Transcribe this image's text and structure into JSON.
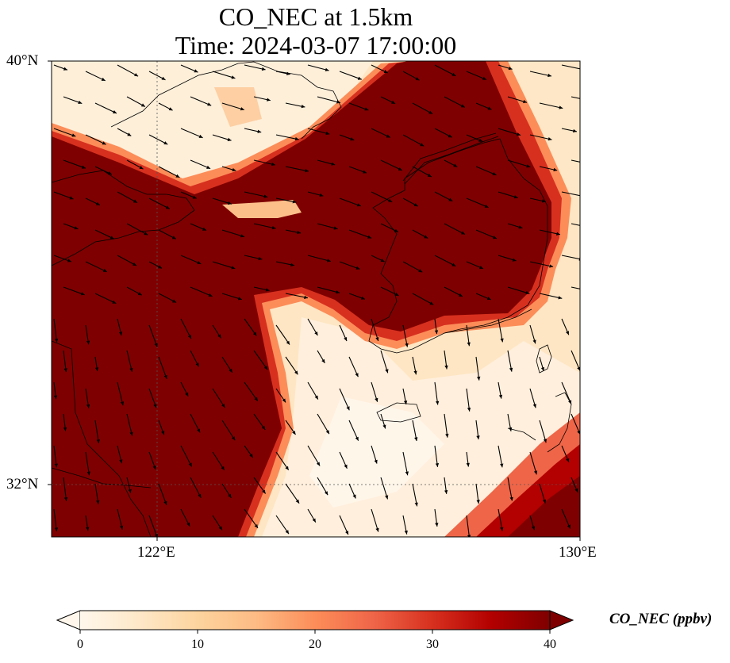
{
  "title_line1": "CO_NEC at 1.5km",
  "title_line2": "Time: 2024-03-07 17:00:00",
  "axes": {
    "lat_ticks": [
      {
        "label": "40°N"
      },
      {
        "label": "32°N"
      }
    ],
    "lon_ticks": [
      {
        "label": "122°E"
      },
      {
        "label": "130°E"
      }
    ]
  },
  "colorbar": {
    "label": "CO_NEC (ppbv)",
    "min": 0,
    "max": 40,
    "extend": "both",
    "ticks": [
      "0",
      "10",
      "20",
      "30",
      "40"
    ],
    "colormap": "OrRd",
    "colors": [
      "#fff7ec",
      "#fee8c8",
      "#fdd49e",
      "#fdbb84",
      "#fc8d59",
      "#ef6548",
      "#d7301f",
      "#b30000",
      "#7f0000"
    ]
  },
  "map": {
    "lon_range": [
      120,
      130
    ],
    "lat_range": [
      31,
      40
    ],
    "gridlines": "dotted at 122°E and 32°N",
    "features": [
      "coastlines",
      "wind vectors"
    ]
  }
}
